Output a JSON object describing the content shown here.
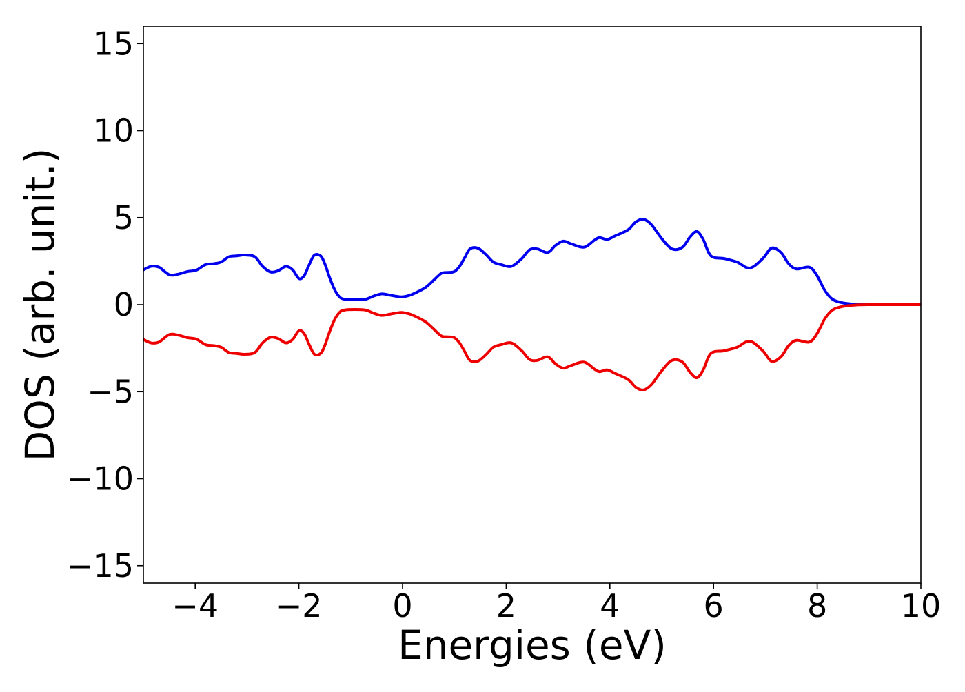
{
  "chart_data": {
    "type": "line",
    "title": "",
    "xlabel": "Energies (eV)",
    "ylabel": "DOS (arb. unit.)",
    "xlim": [
      -5,
      10
    ],
    "ylim": [
      -16,
      16
    ],
    "x_ticks": [
      -4,
      -2,
      0,
      2,
      4,
      6,
      8,
      10
    ],
    "x_tick_labels": [
      "−4",
      "−2",
      "0",
      "2",
      "4",
      "6",
      "8",
      "10"
    ],
    "y_ticks": [
      -15,
      -10,
      -5,
      0,
      5,
      10,
      15
    ],
    "y_tick_labels": [
      "−15",
      "−10",
      "−5",
      "0",
      "5",
      "10",
      "15"
    ],
    "grid": false,
    "legend": false,
    "x": [
      -5.0,
      -4.85,
      -4.7,
      -4.5,
      -4.33,
      -4.15,
      -3.98,
      -3.8,
      -3.65,
      -3.5,
      -3.35,
      -3.2,
      -3.05,
      -2.85,
      -2.7,
      -2.55,
      -2.4,
      -2.25,
      -2.12,
      -2.0,
      -1.9,
      -1.8,
      -1.7,
      -1.58,
      -1.5,
      -1.4,
      -1.3,
      -1.2,
      -1.1,
      -1.0,
      -0.85,
      -0.7,
      -0.55,
      -0.4,
      -0.25,
      -0.12,
      0.0,
      0.15,
      0.3,
      0.45,
      0.6,
      0.75,
      0.88,
      1.0,
      1.1,
      1.2,
      1.3,
      1.45,
      1.6,
      1.75,
      1.9,
      2.1,
      2.3,
      2.45,
      2.6,
      2.8,
      2.95,
      3.1,
      3.25,
      3.5,
      3.7,
      3.8,
      3.95,
      4.1,
      4.35,
      4.5,
      4.65,
      4.8,
      5.0,
      5.2,
      5.4,
      5.55,
      5.68,
      5.8,
      5.95,
      6.2,
      6.45,
      6.7,
      6.95,
      7.12,
      7.3,
      7.45,
      7.6,
      7.85,
      8.0,
      8.15,
      8.3,
      8.5,
      8.75,
      9.0,
      9.5,
      10.0
    ],
    "series": [
      {
        "color": "#0000ee",
        "values": [
          2.0,
          2.2,
          2.15,
          1.72,
          1.75,
          1.9,
          1.98,
          2.3,
          2.35,
          2.45,
          2.75,
          2.8,
          2.85,
          2.75,
          2.2,
          1.88,
          1.95,
          2.2,
          2.0,
          1.5,
          1.65,
          2.3,
          2.85,
          2.8,
          2.35,
          1.5,
          0.8,
          0.4,
          0.3,
          0.28,
          0.28,
          0.32,
          0.5,
          0.62,
          0.55,
          0.48,
          0.45,
          0.55,
          0.75,
          1.0,
          1.4,
          1.8,
          1.85,
          1.9,
          2.2,
          2.7,
          3.2,
          3.25,
          2.9,
          2.45,
          2.3,
          2.2,
          2.65,
          3.15,
          3.2,
          3.0,
          3.4,
          3.65,
          3.5,
          3.3,
          3.7,
          3.85,
          3.75,
          3.95,
          4.3,
          4.75,
          4.9,
          4.6,
          3.8,
          3.2,
          3.3,
          3.9,
          4.2,
          3.75,
          2.8,
          2.65,
          2.45,
          2.1,
          2.65,
          3.25,
          3.0,
          2.35,
          2.05,
          2.15,
          1.65,
          0.8,
          0.3,
          0.1,
          0.02,
          0.0,
          0.0,
          0.0
        ]
      },
      {
        "color": "#ee0000",
        "values": [
          -2.0,
          -2.2,
          -2.15,
          -1.72,
          -1.75,
          -1.9,
          -1.98,
          -2.3,
          -2.35,
          -2.45,
          -2.75,
          -2.8,
          -2.85,
          -2.75,
          -2.2,
          -1.88,
          -1.95,
          -2.2,
          -2.0,
          -1.5,
          -1.65,
          -2.3,
          -2.85,
          -2.8,
          -2.35,
          -1.5,
          -0.8,
          -0.4,
          -0.3,
          -0.28,
          -0.28,
          -0.32,
          -0.5,
          -0.62,
          -0.55,
          -0.48,
          -0.45,
          -0.55,
          -0.75,
          -1.0,
          -1.4,
          -1.8,
          -1.85,
          -1.9,
          -2.2,
          -2.7,
          -3.2,
          -3.25,
          -2.9,
          -2.45,
          -2.3,
          -2.2,
          -2.65,
          -3.15,
          -3.2,
          -3.0,
          -3.4,
          -3.65,
          -3.5,
          -3.3,
          -3.7,
          -3.85,
          -3.75,
          -3.95,
          -4.3,
          -4.75,
          -4.9,
          -4.6,
          -3.8,
          -3.2,
          -3.3,
          -3.9,
          -4.2,
          -3.75,
          -2.8,
          -2.65,
          -2.45,
          -2.1,
          -2.65,
          -3.25,
          -3.0,
          -2.35,
          -2.05,
          -2.15,
          -1.65,
          -0.8,
          -0.3,
          -0.1,
          -0.02,
          0.0,
          0.0,
          0.0
        ]
      }
    ]
  }
}
